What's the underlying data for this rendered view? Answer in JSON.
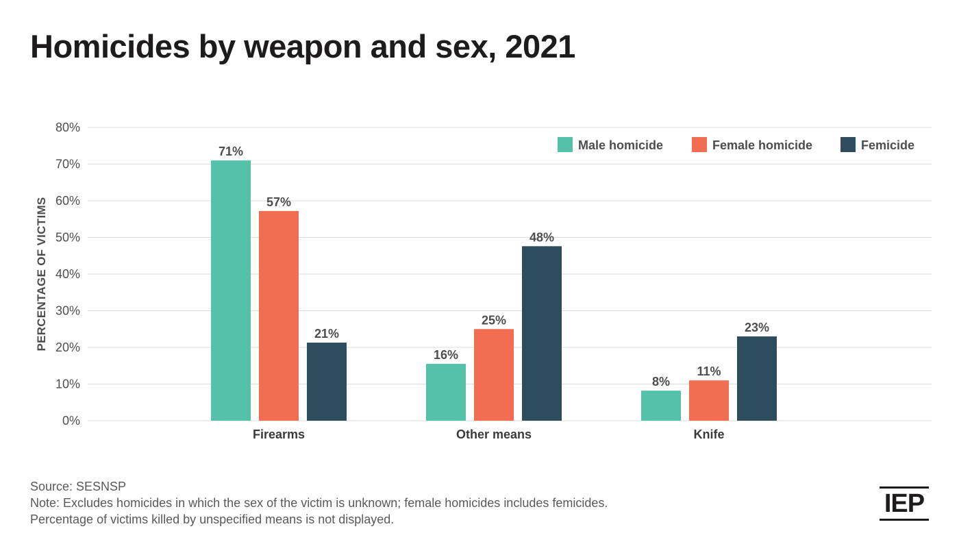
{
  "title": "Homicides by weapon and sex, 2021",
  "chart_data": {
    "type": "bar",
    "title": "Homicides by weapon and sex, 2021",
    "xlabel": "",
    "ylabel": "PERCENTAGE OF VICTIMS",
    "ylim": [
      0,
      80
    ],
    "yticks": [
      "0%",
      "10%",
      "20%",
      "30%",
      "40%",
      "50%",
      "60%",
      "70%",
      "80%"
    ],
    "yticks_values": [
      0,
      10,
      20,
      30,
      40,
      50,
      60,
      70,
      80
    ],
    "categories": [
      "Firearms",
      "Other means",
      "Knife"
    ],
    "series": [
      {
        "name": "Male homicide",
        "color": "#55c1a9",
        "values": [
          71,
          15.5,
          8.2
        ],
        "labels": [
          "71%",
          "16%",
          "8%"
        ]
      },
      {
        "name": "Female homicide",
        "color": "#f26e52",
        "values": [
          57.2,
          25,
          11
        ],
        "labels": [
          "57%",
          "25%",
          "11%"
        ]
      },
      {
        "name": "Femicide",
        "color": "#2d4d5e",
        "values": [
          21.3,
          47.6,
          23
        ],
        "labels": [
          "21%",
          "48%",
          "23%"
        ]
      }
    ],
    "legend": "top-right",
    "grid": true
  },
  "footer": {
    "source": "Source: SESNSP",
    "note1": "Note: Excludes homicides in which the sex of the victim is unknown; female homicides includes femicides.",
    "note2": "Percentage of victims killed by unspecified means is not displayed."
  },
  "logo": {
    "text": "IEP"
  }
}
